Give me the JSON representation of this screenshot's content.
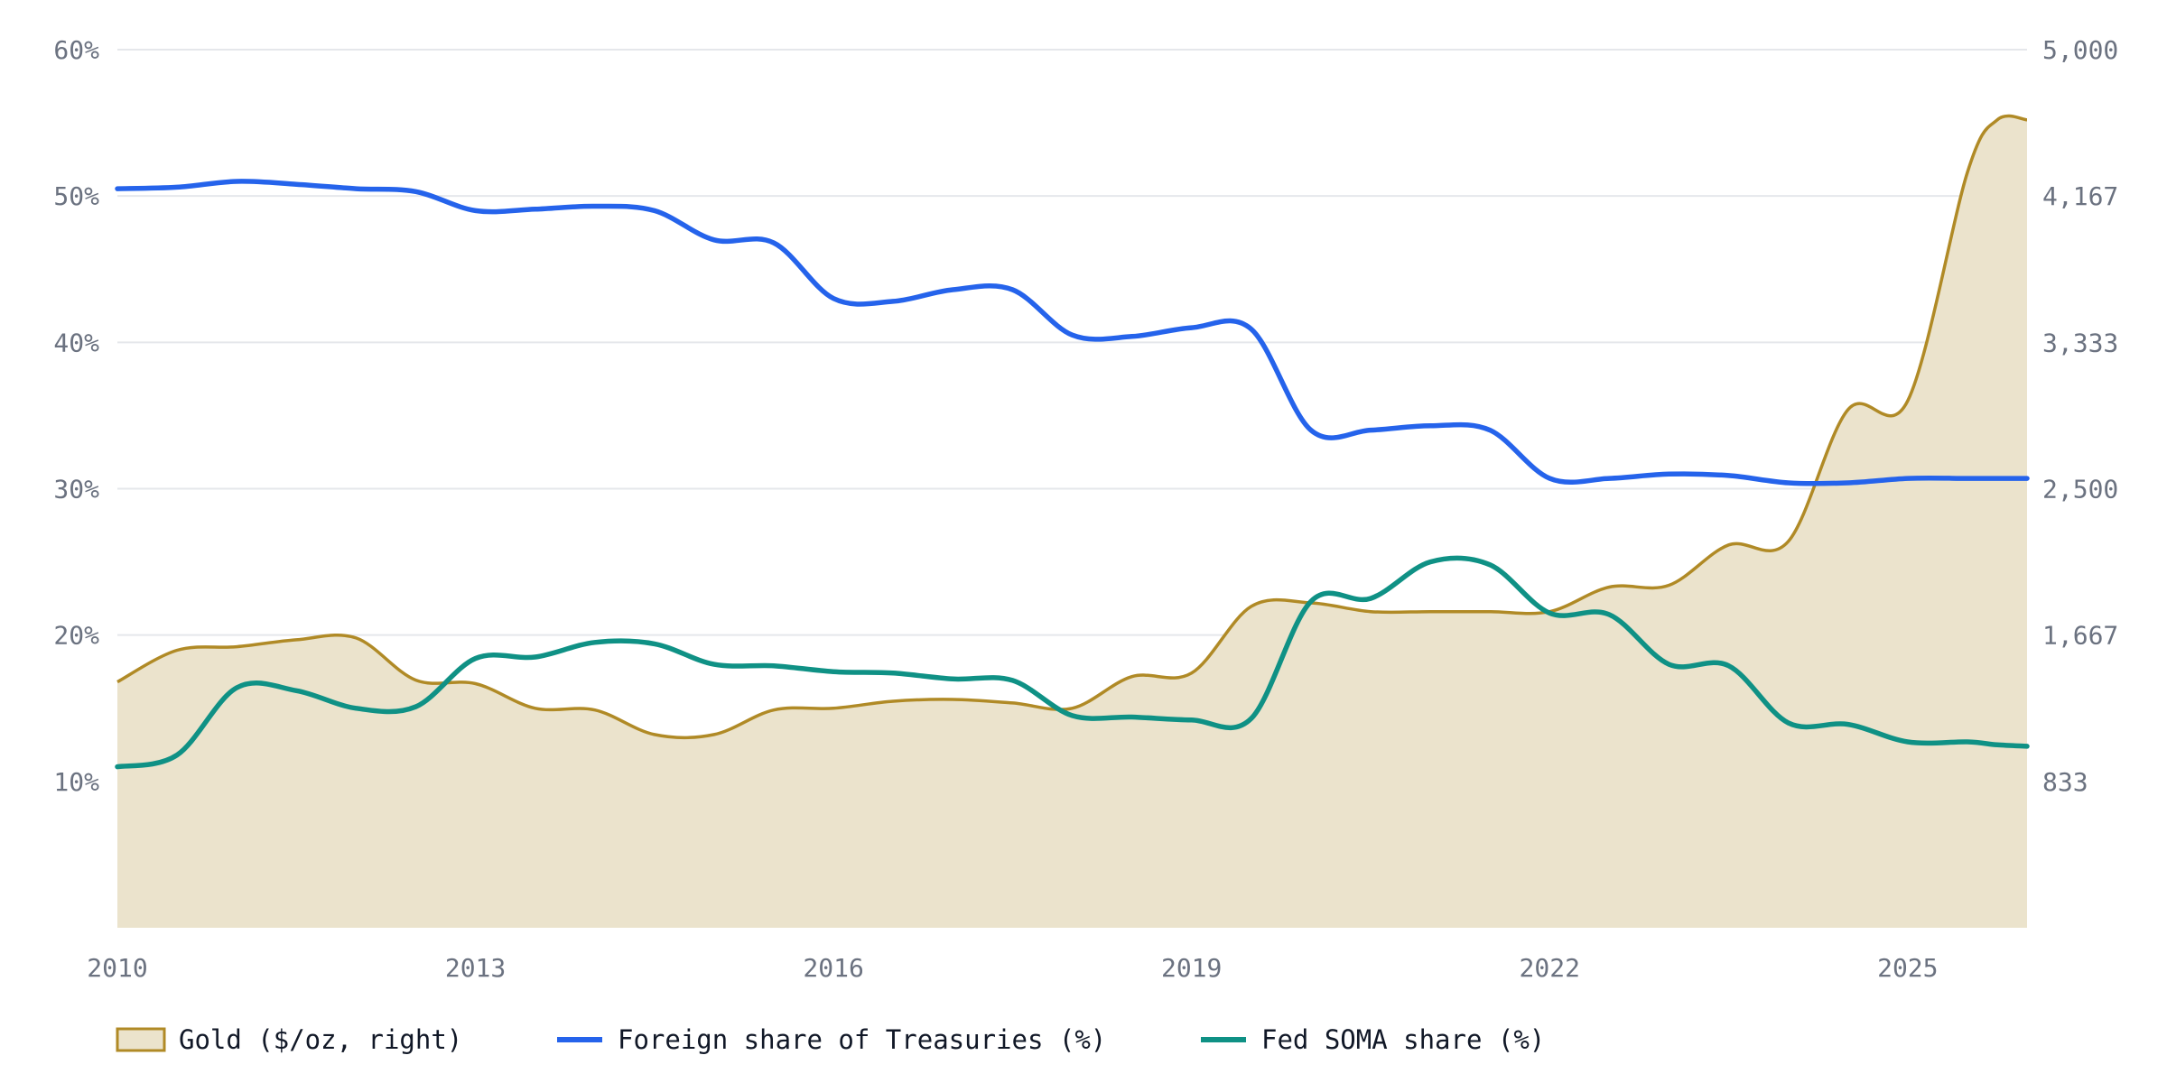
{
  "chart_data": {
    "type": "line",
    "title": "",
    "xlabel": "",
    "ylabel": "",
    "x": [
      2010.0,
      2010.5,
      2011.0,
      2011.5,
      2012.0,
      2012.5,
      2013.0,
      2013.5,
      2014.0,
      2014.5,
      2015.0,
      2015.5,
      2016.0,
      2016.5,
      2017.0,
      2017.5,
      2018.0,
      2018.5,
      2019.0,
      2019.5,
      2020.0,
      2020.5,
      2021.0,
      2021.5,
      2022.0,
      2022.5,
      2023.0,
      2023.5,
      2024.0,
      2024.5,
      2025.0,
      2025.5,
      2025.75,
      2026.0
    ],
    "xlim": [
      2010,
      2026
    ],
    "x_ticks": [
      "2010",
      "2013",
      "2016",
      "2019",
      "2022",
      "2025"
    ],
    "y_left": {
      "lim": [
        0,
        60
      ],
      "ticks": [
        "10%",
        "20%",
        "30%",
        "40%",
        "50%",
        "60%"
      ],
      "tick_values": [
        10,
        20,
        30,
        40,
        50,
        60
      ]
    },
    "y_right": {
      "lim": [
        0,
        5000
      ],
      "ticks": [
        "833",
        "1,667",
        "2,500",
        "3,333",
        "4,167",
        "5,000"
      ],
      "tick_values": [
        833,
        1667,
        2500,
        3333,
        4167,
        5000
      ]
    },
    "grid": true,
    "legend_position": "bottom-left",
    "colors": {
      "gold_line": "#b08a26",
      "gold_fill": "#ebe3cc",
      "foreign": "#2563eb",
      "soma": "#0f9185"
    },
    "series": [
      {
        "name": "Gold ($/oz, right)",
        "axis": "right",
        "style": "area",
        "values": [
          1400,
          1580,
          1600,
          1640,
          1650,
          1410,
          1390,
          1250,
          1240,
          1100,
          1100,
          1240,
          1250,
          1290,
          1300,
          1280,
          1250,
          1430,
          1450,
          1830,
          1850,
          1800,
          1800,
          1800,
          1800,
          1940,
          1950,
          2180,
          2200,
          2950,
          3000,
          4300,
          4600,
          4600
        ]
      },
      {
        "name": "Foreign share of Treasuries (%)",
        "axis": "left",
        "style": "line",
        "values": [
          50.5,
          50.6,
          51.0,
          50.8,
          50.5,
          50.3,
          49.0,
          49.1,
          49.3,
          49.0,
          47.0,
          46.8,
          43.0,
          42.8,
          43.6,
          43.6,
          40.5,
          40.4,
          41.0,
          40.9,
          34.0,
          34.0,
          34.3,
          34.0,
          30.7,
          30.7,
          31.0,
          30.9,
          30.4,
          30.4,
          30.7,
          30.7,
          30.7,
          30.7
        ]
      },
      {
        "name": "Fed SOMA share (%)",
        "axis": "left",
        "style": "line",
        "values": [
          11.0,
          11.8,
          16.4,
          16.2,
          15.0,
          15.1,
          18.4,
          18.5,
          19.5,
          19.4,
          18.0,
          17.9,
          17.5,
          17.4,
          17.0,
          16.9,
          14.5,
          14.4,
          14.2,
          14.3,
          22.3,
          22.5,
          25.0,
          24.8,
          21.5,
          21.4,
          18.0,
          17.9,
          14.0,
          13.9,
          12.7,
          12.7,
          12.5,
          12.4
        ]
      }
    ]
  }
}
